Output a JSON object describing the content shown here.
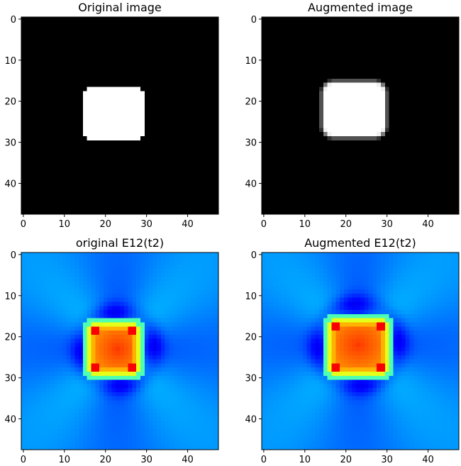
{
  "chart_data": [
    {
      "type": "heatmap",
      "title": "Original image",
      "colormap": "gray",
      "grid": false,
      "xlim": [
        -0.5,
        47.5
      ],
      "ylim": [
        47.5,
        -0.5
      ],
      "xticks": [
        0,
        10,
        20,
        30,
        40
      ],
      "yticks": [
        0,
        10,
        20,
        30,
        40
      ],
      "matrix": {
        "shape": [
          48,
          48
        ],
        "background": 0,
        "object": {
          "value": 1,
          "rows": [
            17,
            29
          ],
          "cols": [
            15,
            29
          ],
          "edge": "sharp"
        }
      }
    },
    {
      "type": "heatmap",
      "title": "Augmented image",
      "colormap": "gray",
      "grid": false,
      "xlim": [
        -0.5,
        47.5
      ],
      "ylim": [
        47.5,
        -0.5
      ],
      "xticks": [
        0,
        10,
        20,
        30,
        40
      ],
      "yticks": [
        0,
        10,
        20,
        30,
        40
      ],
      "matrix": {
        "shape": [
          48,
          48
        ],
        "background": 0,
        "object": {
          "value": 1,
          "rows": [
            16,
            28
          ],
          "cols": [
            15,
            29
          ],
          "edge": "soft"
        }
      }
    },
    {
      "type": "heatmap",
      "title": "original E12(t2)",
      "colormap": "jet",
      "grid": false,
      "xlim": [
        -0.5,
        47.5
      ],
      "ylim": [
        47.5,
        -0.5
      ],
      "xticks": [
        0,
        10,
        20,
        30,
        40
      ],
      "yticks": [
        0,
        10,
        20,
        30,
        40
      ],
      "matrix": {
        "shape": [
          48,
          48
        ],
        "background": 0.25,
        "core": {
          "rows": [
            17,
            29
          ],
          "cols": [
            16,
            28
          ],
          "center": [
            23,
            23
          ],
          "center_value": 0.82,
          "edge_value": 0.75,
          "corner_value": 0.88
        },
        "rim": {
          "value": 0.45
        },
        "lobes": {
          "value": 0.12
        }
      }
    },
    {
      "type": "heatmap",
      "title": "Augmented E12(t2)",
      "colormap": "jet",
      "grid": false,
      "xlim": [
        -0.5,
        47.5
      ],
      "ylim": [
        47.5,
        -0.5
      ],
      "xticks": [
        0,
        10,
        20,
        30,
        40
      ],
      "yticks": [
        0,
        10,
        20,
        30,
        40
      ],
      "matrix": {
        "shape": [
          48,
          48
        ],
        "background": 0.25,
        "core": {
          "rows": [
            16,
            29
          ],
          "cols": [
            16,
            30
          ],
          "center": [
            22,
            23
          ],
          "center_value": 0.82,
          "edge_value": 0.75,
          "corner_value": 0.88
        },
        "rim": {
          "value": 0.45
        },
        "lobes": {
          "value": 0.12
        }
      }
    }
  ]
}
